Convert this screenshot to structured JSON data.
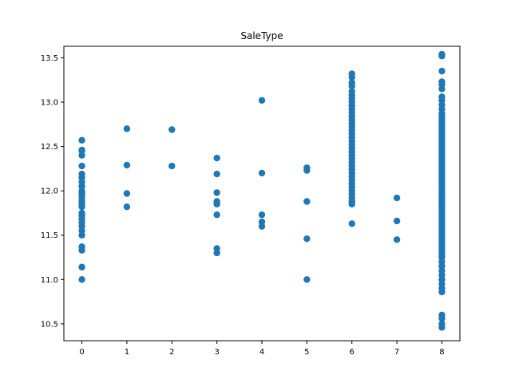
{
  "chart_data": {
    "type": "scatter",
    "title": "SaleType",
    "xlabel": "",
    "ylabel": "",
    "xlim": [
      -0.4,
      8.4
    ],
    "ylim": [
      10.31,
      13.63
    ],
    "xticks": [
      0,
      1,
      2,
      3,
      4,
      5,
      6,
      7,
      8
    ],
    "yticks": [
      10.5,
      11.0,
      11.5,
      12.0,
      12.5,
      13.0,
      13.5
    ],
    "ytick_labels": [
      "10.5",
      "11.0",
      "11.5",
      "12.0",
      "12.5",
      "13.0",
      "13.5"
    ],
    "grid": false,
    "legend": "none",
    "marker_color": "#1f77b4",
    "series": [
      {
        "points": [
          [
            0,
            12.57
          ],
          [
            0,
            12.46
          ],
          [
            0,
            12.45
          ],
          [
            0,
            12.4
          ],
          [
            0,
            12.28
          ],
          [
            0,
            12.19
          ],
          [
            0,
            12.15
          ],
          [
            0,
            12.1
          ],
          [
            0,
            12.05
          ],
          [
            0,
            12.0
          ],
          [
            0,
            11.97
          ],
          [
            0,
            11.95
          ],
          [
            0,
            11.92
          ],
          [
            0,
            11.88
          ],
          [
            0,
            11.85
          ],
          [
            0,
            11.82
          ],
          [
            0,
            11.75
          ],
          [
            0,
            11.72
          ],
          [
            0,
            11.68
          ],
          [
            0,
            11.64
          ],
          [
            0,
            11.6
          ],
          [
            0,
            11.55
          ],
          [
            0,
            11.5
          ],
          [
            0,
            11.37
          ],
          [
            0,
            11.33
          ],
          [
            0,
            11.14
          ],
          [
            0,
            11.0
          ],
          [
            1,
            12.7
          ],
          [
            1,
            12.29
          ],
          [
            1,
            11.97
          ],
          [
            1,
            11.82
          ],
          [
            2,
            12.69
          ],
          [
            2,
            12.28
          ],
          [
            3,
            12.37
          ],
          [
            3,
            12.19
          ],
          [
            3,
            11.98
          ],
          [
            3,
            11.88
          ],
          [
            3,
            11.85
          ],
          [
            3,
            11.73
          ],
          [
            3,
            11.35
          ],
          [
            3,
            11.3
          ],
          [
            4,
            13.02
          ],
          [
            4,
            12.2
          ],
          [
            4,
            11.73
          ],
          [
            4,
            11.65
          ],
          [
            4,
            11.6
          ],
          [
            5,
            12.26
          ],
          [
            5,
            12.23
          ],
          [
            5,
            11.88
          ],
          [
            5,
            11.46
          ],
          [
            5,
            11.0
          ],
          [
            6,
            13.32
          ],
          [
            6,
            13.28
          ],
          [
            6,
            13.22
          ],
          [
            6,
            13.18
          ],
          [
            6,
            13.12
          ],
          [
            6,
            13.08
          ],
          [
            6,
            13.04
          ],
          [
            6,
            13.0
          ],
          [
            6,
            12.96
          ],
          [
            6,
            12.92
          ],
          [
            6,
            12.88
          ],
          [
            6,
            12.84
          ],
          [
            6,
            12.8
          ],
          [
            6,
            12.76
          ],
          [
            6,
            12.72
          ],
          [
            6,
            12.68
          ],
          [
            6,
            12.64
          ],
          [
            6,
            12.6
          ],
          [
            6,
            12.56
          ],
          [
            6,
            12.52
          ],
          [
            6,
            12.48
          ],
          [
            6,
            12.44
          ],
          [
            6,
            12.4
          ],
          [
            6,
            12.36
          ],
          [
            6,
            12.32
          ],
          [
            6,
            12.28
          ],
          [
            6,
            12.24
          ],
          [
            6,
            12.2
          ],
          [
            6,
            12.16
          ],
          [
            6,
            12.12
          ],
          [
            6,
            12.08
          ],
          [
            6,
            12.04
          ],
          [
            6,
            12.0
          ],
          [
            6,
            11.96
          ],
          [
            6,
            11.92
          ],
          [
            6,
            11.88
          ],
          [
            6,
            11.85
          ],
          [
            6,
            11.63
          ],
          [
            7,
            11.92
          ],
          [
            7,
            11.66
          ],
          [
            7,
            11.45
          ],
          [
            8,
            13.54
          ],
          [
            8,
            13.52
          ],
          [
            8,
            13.35
          ],
          [
            8,
            13.23
          ],
          [
            8,
            13.2
          ],
          [
            8,
            13.15
          ],
          [
            8,
            13.06
          ],
          [
            8,
            13.02
          ],
          [
            8,
            12.97
          ],
          [
            8,
            12.92
          ],
          [
            8,
            12.87
          ],
          [
            8,
            12.84
          ],
          [
            8,
            12.81
          ],
          [
            8,
            12.78
          ],
          [
            8,
            12.75
          ],
          [
            8,
            12.72
          ],
          [
            8,
            12.69
          ],
          [
            8,
            12.66
          ],
          [
            8,
            12.63
          ],
          [
            8,
            12.6
          ],
          [
            8,
            12.57
          ],
          [
            8,
            12.54
          ],
          [
            8,
            12.51
          ],
          [
            8,
            12.48
          ],
          [
            8,
            12.45
          ],
          [
            8,
            12.42
          ],
          [
            8,
            12.39
          ],
          [
            8,
            12.36
          ],
          [
            8,
            12.33
          ],
          [
            8,
            12.3
          ],
          [
            8,
            12.27
          ],
          [
            8,
            12.24
          ],
          [
            8,
            12.21
          ],
          [
            8,
            12.18
          ],
          [
            8,
            12.15
          ],
          [
            8,
            12.12
          ],
          [
            8,
            12.09
          ],
          [
            8,
            12.06
          ],
          [
            8,
            12.03
          ],
          [
            8,
            12.0
          ],
          [
            8,
            11.97
          ],
          [
            8,
            11.94
          ],
          [
            8,
            11.91
          ],
          [
            8,
            11.88
          ],
          [
            8,
            11.85
          ],
          [
            8,
            11.82
          ],
          [
            8,
            11.79
          ],
          [
            8,
            11.76
          ],
          [
            8,
            11.73
          ],
          [
            8,
            11.7
          ],
          [
            8,
            11.67
          ],
          [
            8,
            11.64
          ],
          [
            8,
            11.61
          ],
          [
            8,
            11.58
          ],
          [
            8,
            11.55
          ],
          [
            8,
            11.52
          ],
          [
            8,
            11.49
          ],
          [
            8,
            11.46
          ],
          [
            8,
            11.43
          ],
          [
            8,
            11.4
          ],
          [
            8,
            11.37
          ],
          [
            8,
            11.34
          ],
          [
            8,
            11.31
          ],
          [
            8,
            11.28
          ],
          [
            8,
            11.25
          ],
          [
            8,
            11.2
          ],
          [
            8,
            11.15
          ],
          [
            8,
            11.1
          ],
          [
            8,
            11.05
          ],
          [
            8,
            11.0
          ],
          [
            8,
            10.95
          ],
          [
            8,
            10.9
          ],
          [
            8,
            10.86
          ],
          [
            8,
            10.6
          ],
          [
            8,
            10.56
          ],
          [
            8,
            10.5
          ],
          [
            8,
            10.46
          ]
        ]
      }
    ]
  }
}
